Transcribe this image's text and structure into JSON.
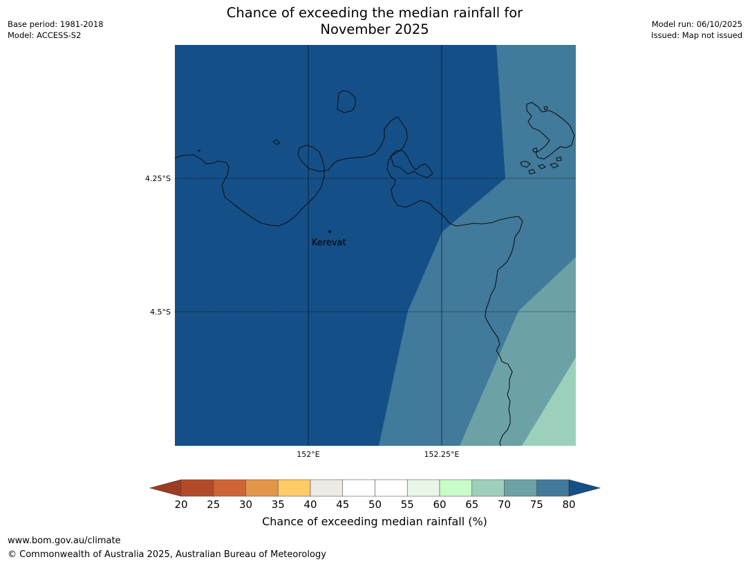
{
  "map": {
    "title_line1": "Chance of exceeding the median rainfall for",
    "title_line2": "November 2025",
    "base_period": "Base period: 1981-2018",
    "model": "Model: ACCESS-S2",
    "model_run": "Model run: 06/10/2025",
    "issued": "Issued: Map not issued",
    "lat_labels": [
      "4.25°S",
      "4.5°S"
    ],
    "lon_labels": [
      "152°E",
      "152.25°E"
    ],
    "place_name": "Kerevat",
    "colors": {
      "band_80_plus": "#154f88",
      "band_75_80": "#417a9a",
      "band_70_75": "#6ca2a6",
      "band_65_70": "#9dd0bb",
      "coastline": "#111111",
      "gridline": "#000000"
    }
  },
  "chart_data": {
    "type": "colorbar",
    "title": "Chance of exceeding median rainfall (%)",
    "ticks": [
      "20",
      "25",
      "30",
      "35",
      "40",
      "45",
      "50",
      "55",
      "60",
      "65",
      "70",
      "75",
      "80"
    ],
    "extend_low_color": "#9e3b23",
    "extend_high_color": "#154f88",
    "bins": [
      {
        "from": 20,
        "to": 25,
        "color": "#b24b28"
      },
      {
        "from": 25,
        "to": 30,
        "color": "#cf6534"
      },
      {
        "from": 30,
        "to": 35,
        "color": "#e39548"
      },
      {
        "from": 35,
        "to": 40,
        "color": "#fecb66"
      },
      {
        "from": 40,
        "to": 45,
        "color": "#ede9e4"
      },
      {
        "from": 45,
        "to": 50,
        "color": "#ffffff"
      },
      {
        "from": 50,
        "to": 55,
        "color": "#ffffff"
      },
      {
        "from": 55,
        "to": 60,
        "color": "#e8f6e8"
      },
      {
        "from": 60,
        "to": 65,
        "color": "#c8fcc8"
      },
      {
        "from": 65,
        "to": 70,
        "color": "#9dd0bb"
      },
      {
        "from": 70,
        "to": 75,
        "color": "#6ca2a6"
      },
      {
        "from": 75,
        "to": 80,
        "color": "#417a9a"
      }
    ]
  },
  "footer": {
    "url": "www.bom.gov.au/climate",
    "copyright": "© Commonwealth of Australia 2025, Australian Bureau of Meteorology"
  }
}
